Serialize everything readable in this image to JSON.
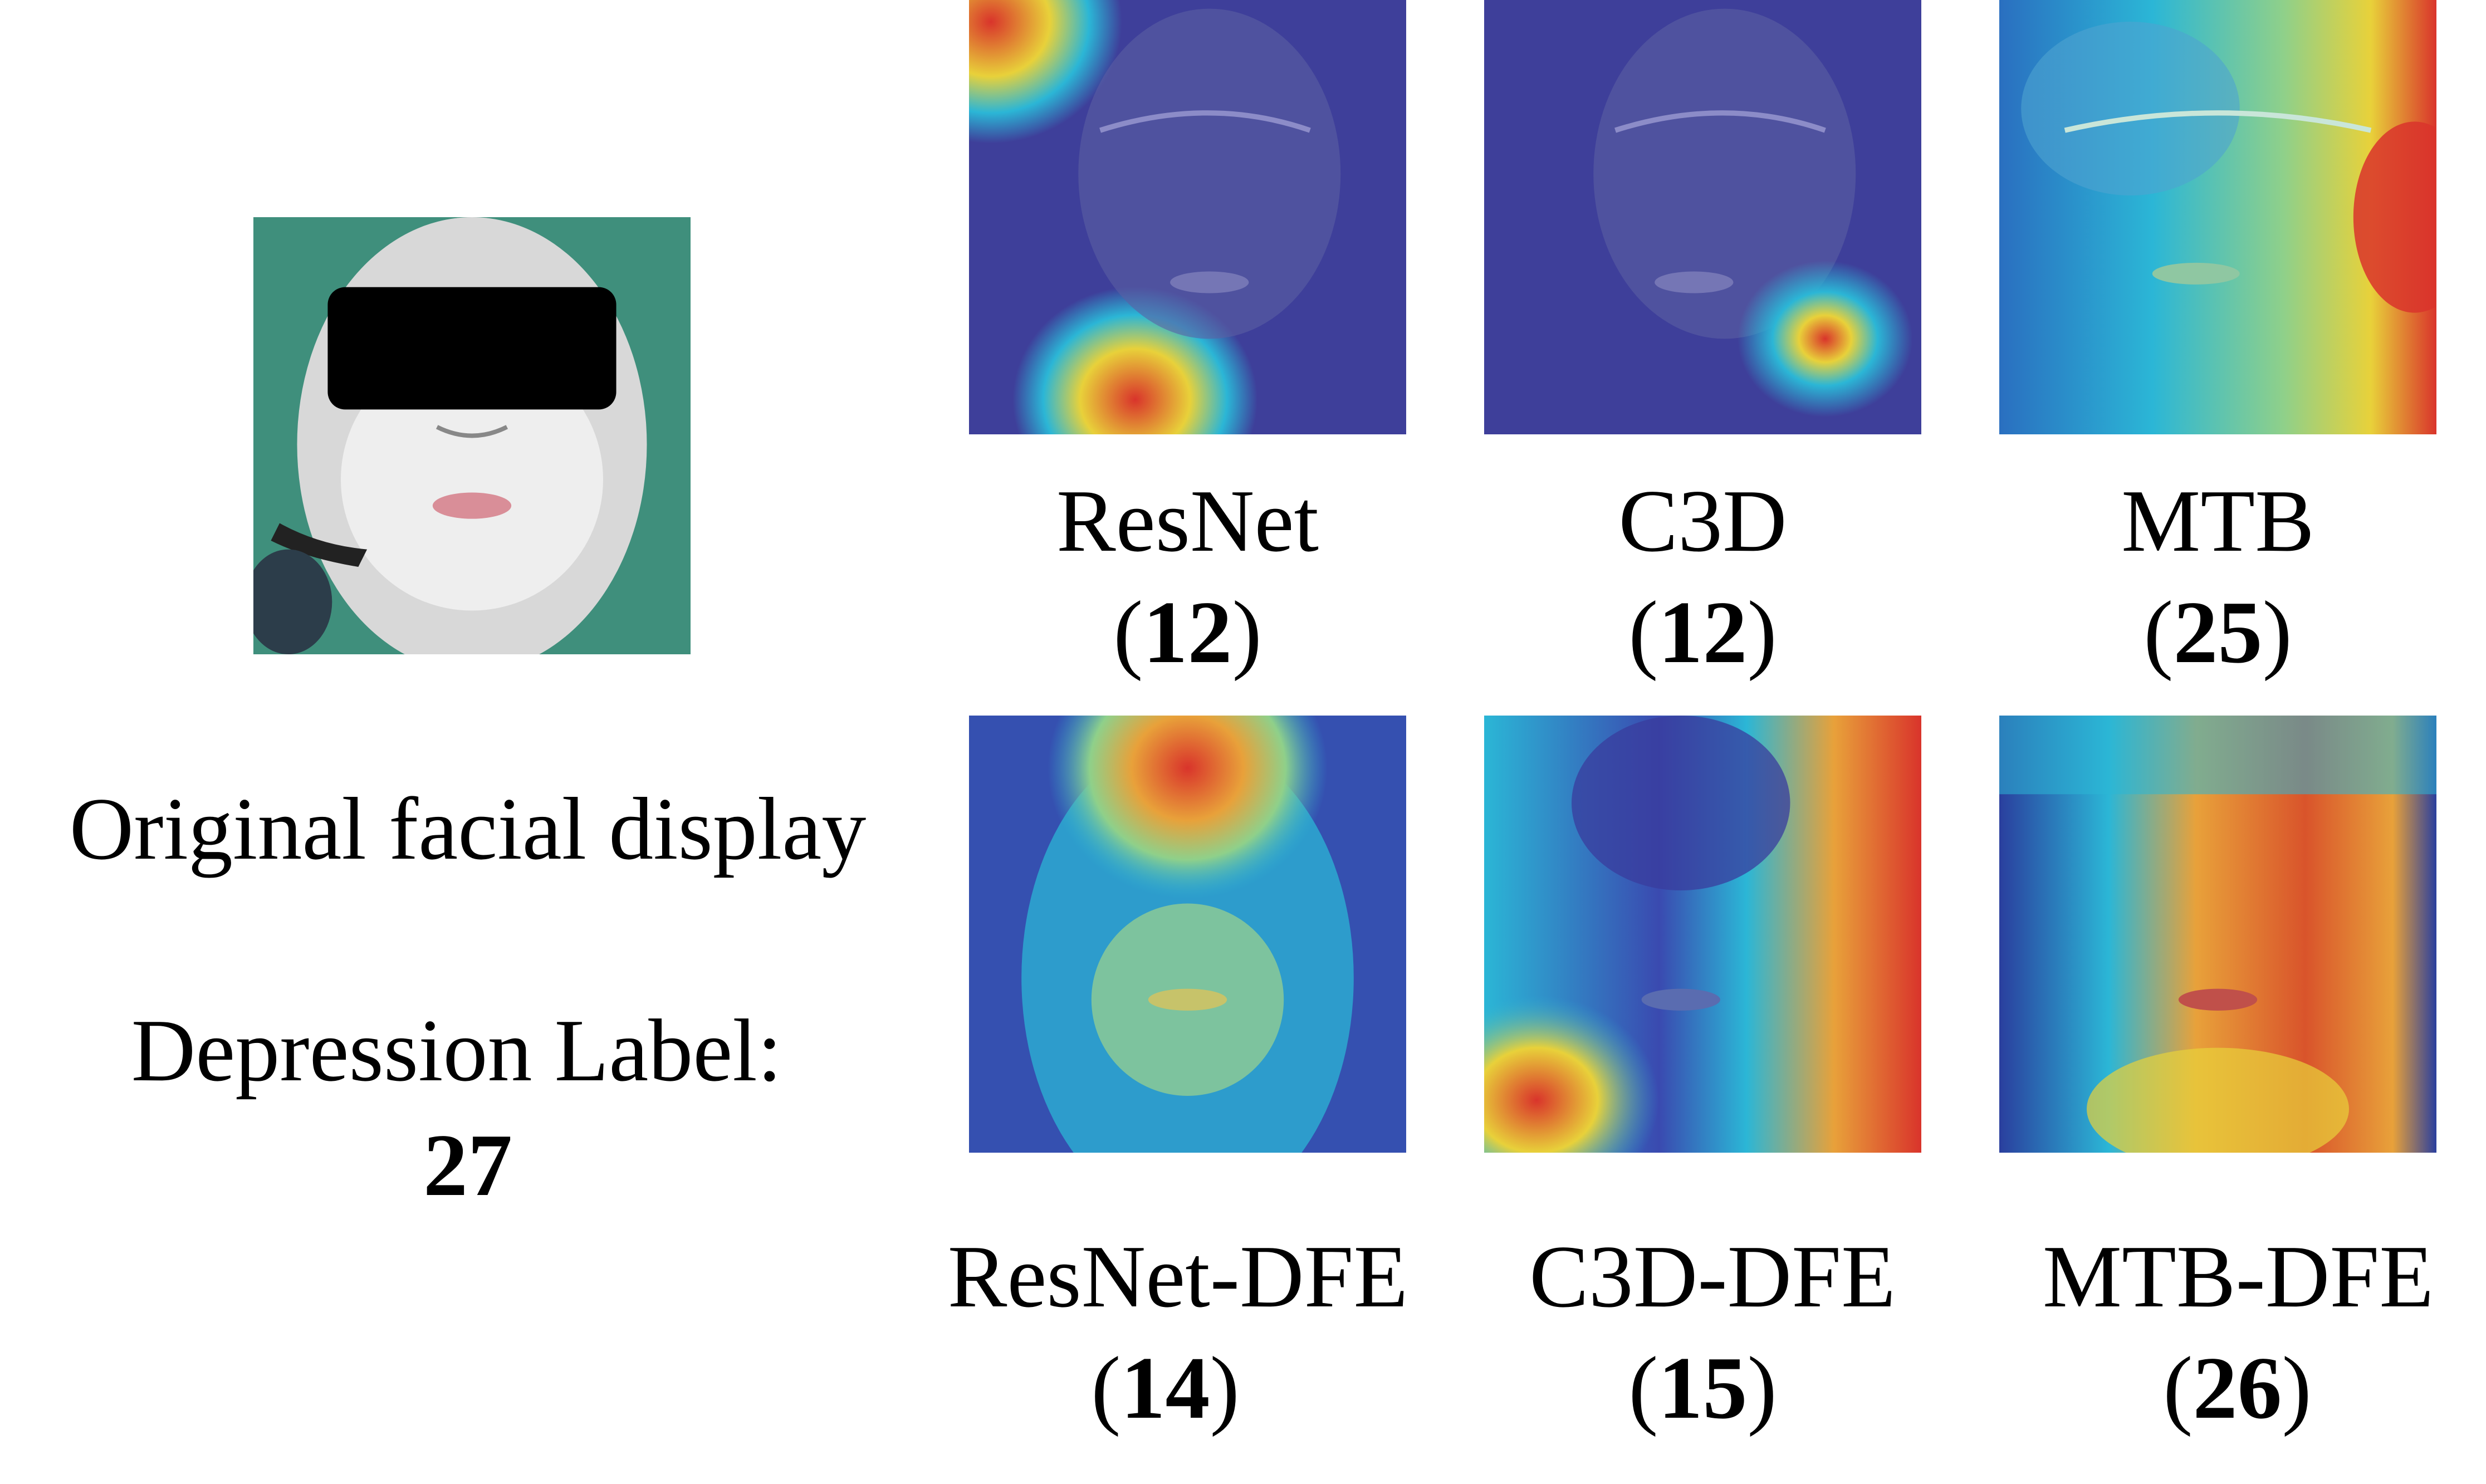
{
  "original": {
    "caption": "Original facial display",
    "label_text": "Depression Label:",
    "label_value": "27"
  },
  "models": [
    {
      "name": "ResNet",
      "score": "12",
      "heatmap": "hot spots top-left corner and lower chin"
    },
    {
      "name": "C3D",
      "score": "12",
      "heatmap": "single hot spot right of chin"
    },
    {
      "name": "MTB",
      "score": "25",
      "heatmap": "broad warm regions on right cheek"
    },
    {
      "name": "ResNet-DFE",
      "score": "14",
      "heatmap": "warm region on forehead"
    },
    {
      "name": "C3D-DFE",
      "score": "15",
      "heatmap": "warm regions lower-left and right"
    },
    {
      "name": "MTB-DFE",
      "score": "26",
      "heatmap": "warm region covering central face"
    }
  ],
  "colors": {
    "cold": "#2a2f9e",
    "cool": "#2bb6d6",
    "warm": "#e8d13a",
    "hot": "#d9342b"
  }
}
